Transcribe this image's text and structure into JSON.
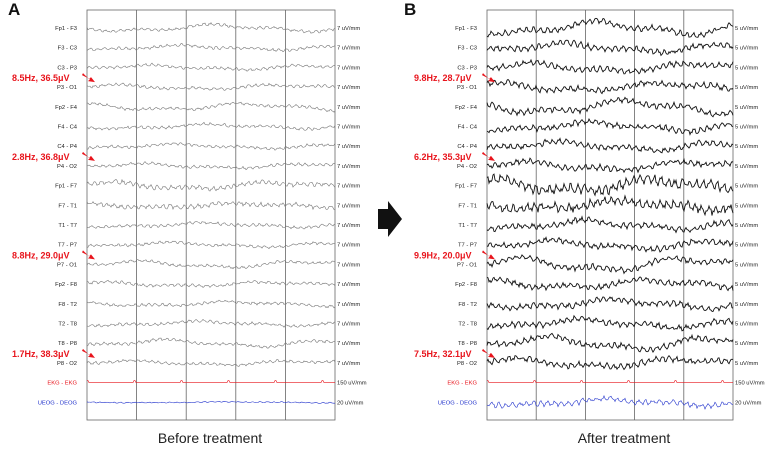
{
  "panels": [
    {
      "letter": "A",
      "caption": "Before treatment",
      "channels": [
        {
          "label": "Fp1 - F3",
          "scale": "7 uV/mm"
        },
        {
          "label": "F3 - C3",
          "scale": "7 uV/mm"
        },
        {
          "label": "C3 - P3",
          "scale": "7 uV/mm"
        },
        {
          "label": "P3 - O1",
          "scale": "7 uV/mm"
        },
        {
          "label": "Fp2 - F4",
          "scale": "7 uV/mm"
        },
        {
          "label": "F4 - C4",
          "scale": "7 uV/mm"
        },
        {
          "label": "C4 - P4",
          "scale": "7 uV/mm"
        },
        {
          "label": "P4 - O2",
          "scale": "7 uV/mm"
        },
        {
          "label": "Fp1 - F7",
          "scale": "7 uV/mm"
        },
        {
          "label": "F7 - T1",
          "scale": "7 uV/mm"
        },
        {
          "label": "T1 - T7",
          "scale": "7 uV/mm"
        },
        {
          "label": "T7 - P7",
          "scale": "7 uV/mm"
        },
        {
          "label": "P7 - O1",
          "scale": "7 uV/mm"
        },
        {
          "label": "Fp2 - F8",
          "scale": "7 uV/mm"
        },
        {
          "label": "F8 - T2",
          "scale": "7 uV/mm"
        },
        {
          "label": "T2 - T8",
          "scale": "7 uV/mm"
        },
        {
          "label": "T8 - P8",
          "scale": "7 uV/mm"
        },
        {
          "label": "P8 - O2",
          "scale": "7 uV/mm"
        },
        {
          "label": "EKG - EKG",
          "scale": "150 uV/mm"
        },
        {
          "label": "UEOG - DEOG",
          "scale": "20 uV/mm"
        }
      ],
      "annotations": [
        {
          "text": "8.5Hz, 36.5μV",
          "channel": 3
        },
        {
          "text": "2.8Hz, 36.8μV",
          "channel": 7
        },
        {
          "text": "8.8Hz, 29.0μV",
          "channel": 12
        },
        {
          "text": "1.7Hz, 38.3μV",
          "channel": 17
        }
      ]
    },
    {
      "letter": "B",
      "caption": "After treatment",
      "channels": [
        {
          "label": "Fp1 - F3",
          "scale": "5 uV/mm"
        },
        {
          "label": "F3 - C3",
          "scale": "5 uV/mm"
        },
        {
          "label": "C3 - P3",
          "scale": "5 uV/mm"
        },
        {
          "label": "P3 - O1",
          "scale": "5 uV/mm"
        },
        {
          "label": "Fp2 - F4",
          "scale": "5 uV/mm"
        },
        {
          "label": "F4 - C4",
          "scale": "5 uV/mm"
        },
        {
          "label": "C4 - P4",
          "scale": "5 uV/mm"
        },
        {
          "label": "P4 - O2",
          "scale": "5 uV/mm"
        },
        {
          "label": "Fp1 - F7",
          "scale": "5 uV/mm"
        },
        {
          "label": "F7 - T1",
          "scale": "5 uV/mm"
        },
        {
          "label": "T1 - T7",
          "scale": "5 uV/mm"
        },
        {
          "label": "T7 - P7",
          "scale": "5 uV/mm"
        },
        {
          "label": "P7 - O1",
          "scale": "5 uV/mm"
        },
        {
          "label": "Fp2 - F8",
          "scale": "5 uV/mm"
        },
        {
          "label": "F8 - T2",
          "scale": "5 uV/mm"
        },
        {
          "label": "T2 - T8",
          "scale": "5 uV/mm"
        },
        {
          "label": "T8 - P8",
          "scale": "5 uV/mm"
        },
        {
          "label": "P8 - O2",
          "scale": "5 uV/mm"
        },
        {
          "label": "EKG - EKG",
          "scale": "150 uV/mm"
        },
        {
          "label": "UEOG - DEOG",
          "scale": "20 uV/mm"
        }
      ],
      "annotations": [
        {
          "text": "9.8Hz, 28.7μV",
          "channel": 3
        },
        {
          "text": "6.2Hz, 35.3μV",
          "channel": 7
        },
        {
          "text": "9.9Hz, 20.0μV",
          "channel": 12
        },
        {
          "text": "7.5Hz, 32.1μV",
          "channel": 17
        }
      ]
    }
  ],
  "colors": {
    "annotation": "#e8141c",
    "ekg": "#e8141c",
    "eog": "#2233cc",
    "trace_before": "#777777",
    "trace_after": "#111111",
    "grid": "#666666"
  },
  "icons": {
    "transition_arrow": "right-arrow-icon"
  }
}
